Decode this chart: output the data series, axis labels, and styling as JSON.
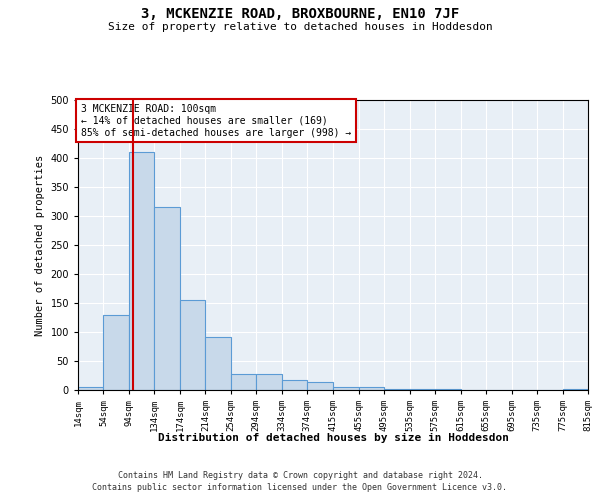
{
  "title": "3, MCKENZIE ROAD, BROXBOURNE, EN10 7JF",
  "subtitle": "Size of property relative to detached houses in Hoddesdon",
  "xlabel": "Distribution of detached houses by size in Hoddesdon",
  "ylabel": "Number of detached properties",
  "bar_color": "#c8d9ea",
  "bar_edge_color": "#5b9bd5",
  "background_color": "#e8eff6",
  "grid_color": "#ffffff",
  "red_line_x": 100,
  "annotation_text": "3 MCKENZIE ROAD: 100sqm\n← 14% of detached houses are smaller (169)\n85% of semi-detached houses are larger (998) →",
  "annotation_box_color": "#ffffff",
  "annotation_border_color": "#cc0000",
  "footer_line1": "Contains HM Land Registry data © Crown copyright and database right 2024.",
  "footer_line2": "Contains public sector information licensed under the Open Government Licence v3.0.",
  "bin_edges": [
    14,
    54,
    94,
    134,
    174,
    214,
    254,
    294,
    334,
    374,
    415,
    455,
    495,
    535,
    575,
    615,
    655,
    695,
    735,
    775,
    815
  ],
  "bar_heights": [
    5,
    130,
    410,
    315,
    155,
    92,
    28,
    28,
    18,
    13,
    5,
    5,
    2,
    1,
    1,
    0,
    0,
    0,
    0,
    1
  ],
  "ylim": [
    0,
    500
  ],
  "yticks": [
    0,
    50,
    100,
    150,
    200,
    250,
    300,
    350,
    400,
    450,
    500
  ]
}
